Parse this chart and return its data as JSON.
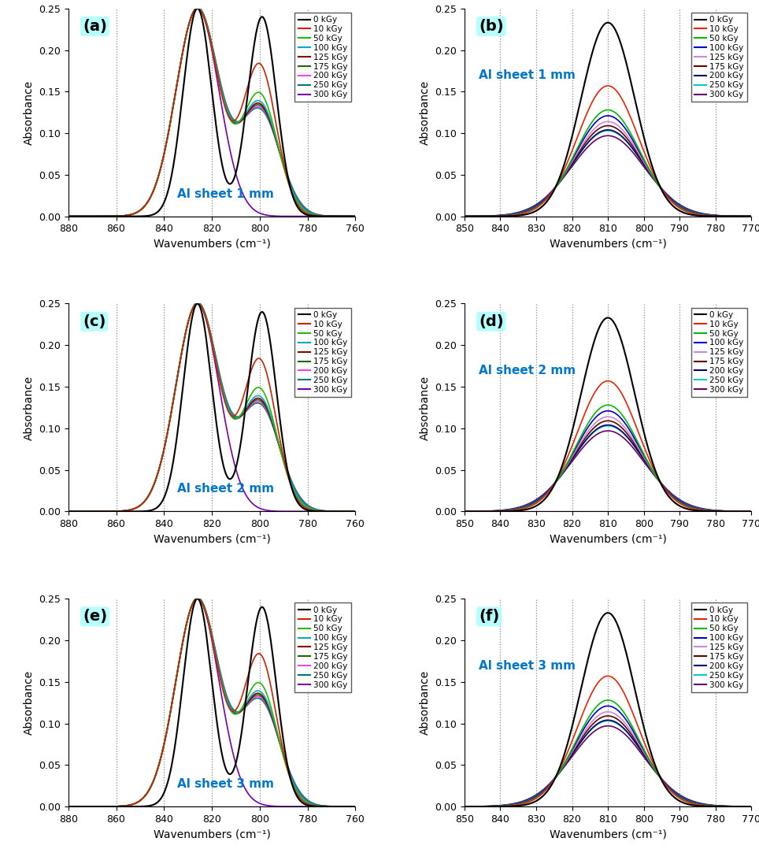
{
  "panels_left": [
    "(a)",
    "(c)",
    "(e)"
  ],
  "panels_right": [
    "(b)",
    "(d)",
    "(f)"
  ],
  "sheet_labels": [
    "Al sheet 1 mm",
    "Al sheet 2 mm",
    "Al sheet 3 mm"
  ],
  "doses": [
    "0 kGy",
    "10 kGy",
    "50 kGy",
    "100 kGy",
    "125 kGy",
    "175 kGy",
    "200 kGy",
    "250 kGy",
    "300 kGy"
  ],
  "colors_left": [
    "#000000",
    "#cc2200",
    "#22bb00",
    "#00aacc",
    "#880000",
    "#226600",
    "#ee44ee",
    "#007777",
    "#7700aa"
  ],
  "colors_right": [
    "#000000",
    "#ee2200",
    "#00bb00",
    "#0000cc",
    "#cc88dd",
    "#660000",
    "#000066",
    "#00cccc",
    "#660066"
  ],
  "xlim_left": [
    880,
    760
  ],
  "xlim_right": [
    850,
    770
  ],
  "ylim": [
    0.0,
    0.25
  ],
  "yticks": [
    0.0,
    0.05,
    0.1,
    0.15,
    0.2,
    0.25
  ],
  "xticks_left": [
    880,
    860,
    840,
    820,
    800,
    780,
    760
  ],
  "xticks_right": [
    850,
    840,
    830,
    820,
    810,
    800,
    790,
    780,
    770
  ],
  "xlabel": "Wavenumbers (cm⁻¹)",
  "ylabel": "Absorbance",
  "dotted_lines_left": [
    860,
    840,
    820,
    800,
    780
  ],
  "dotted_lines_right": [
    840,
    830,
    820,
    810,
    800,
    790,
    780
  ],
  "right_peak_heights": [
    0.233,
    0.157,
    0.128,
    0.121,
    0.114,
    0.109,
    0.104,
    0.103,
    0.097
  ],
  "right_peak_widths": [
    7.5,
    8.5,
    9.0,
    9.3,
    9.5,
    9.7,
    9.9,
    10.0,
    10.2
  ]
}
